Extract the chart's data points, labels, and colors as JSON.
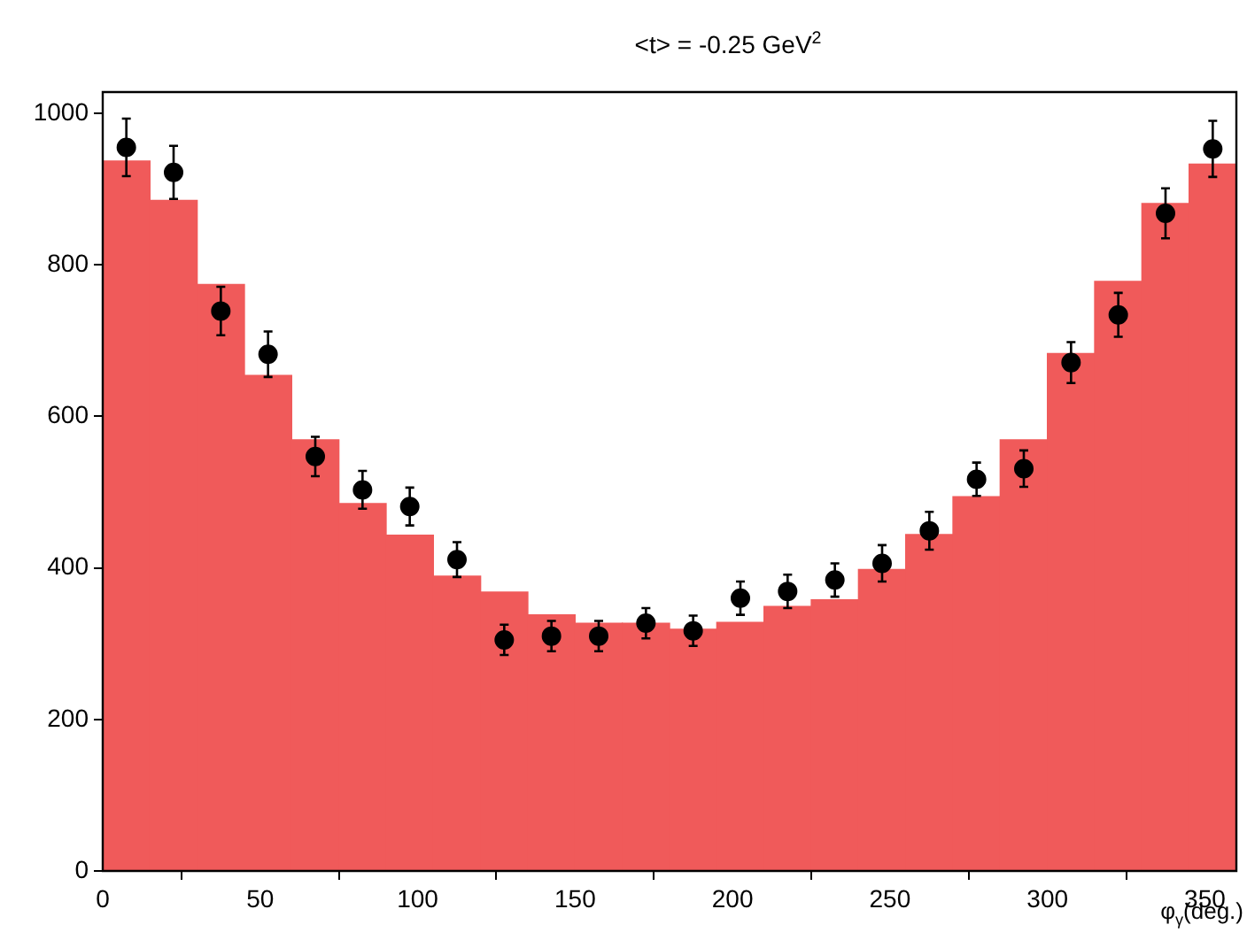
{
  "chart_data": {
    "type": "histogram",
    "title": "<t> = -0.25 GeV$^{2}$",
    "xlabel": "φ$_{γ}$(deg.)",
    "bins": [
      0,
      15,
      30,
      45,
      60,
      75,
      90,
      105,
      120,
      135,
      150,
      165,
      180,
      195,
      210,
      225,
      240,
      255,
      270,
      285,
      300,
      315,
      330,
      345,
      360
    ],
    "series": [
      {
        "color": "#f05a5a",
        "values": [
          937,
          885,
          774,
          654,
          569,
          485,
          443,
          389,
          368,
          338,
          327,
          327,
          319,
          328,
          349,
          358,
          398,
          444,
          494,
          569,
          683,
          778,
          881,
          933
        ]
      },
      {
        "type": "scatter",
        "color": "#000000",
        "x": [
          7.5,
          22.5,
          37.5,
          52.5,
          67.5,
          82.5,
          97.5,
          112.5,
          127.5,
          142.5,
          157.5,
          172.5,
          187.5,
          202.5,
          217.5,
          232.5,
          247.5,
          262.5,
          277.5,
          292.5,
          307.5,
          322.5,
          337.5,
          352.5
        ],
        "values": [
          955,
          922,
          739,
          682,
          547,
          503,
          481,
          411,
          305,
          310,
          310,
          327,
          317,
          360,
          369,
          384,
          406,
          449,
          517,
          531,
          671,
          734,
          868,
          953
        ],
        "errors": [
          38,
          35,
          32,
          30,
          26,
          25,
          25,
          23,
          20,
          20,
          20,
          20,
          20,
          22,
          22,
          22,
          24,
          25,
          22,
          24,
          27,
          29,
          33,
          37
        ]
      }
    ],
    "marker": "circle",
    "grid": false,
    "xlim": [
      0,
      360
    ],
    "xticks": [
      0,
      50,
      100,
      150,
      200,
      250,
      300,
      350
    ],
    "ylim": [
      0,
      1028
    ],
    "yticks": [
      0,
      200,
      400,
      600,
      800,
      1000
    ]
  }
}
